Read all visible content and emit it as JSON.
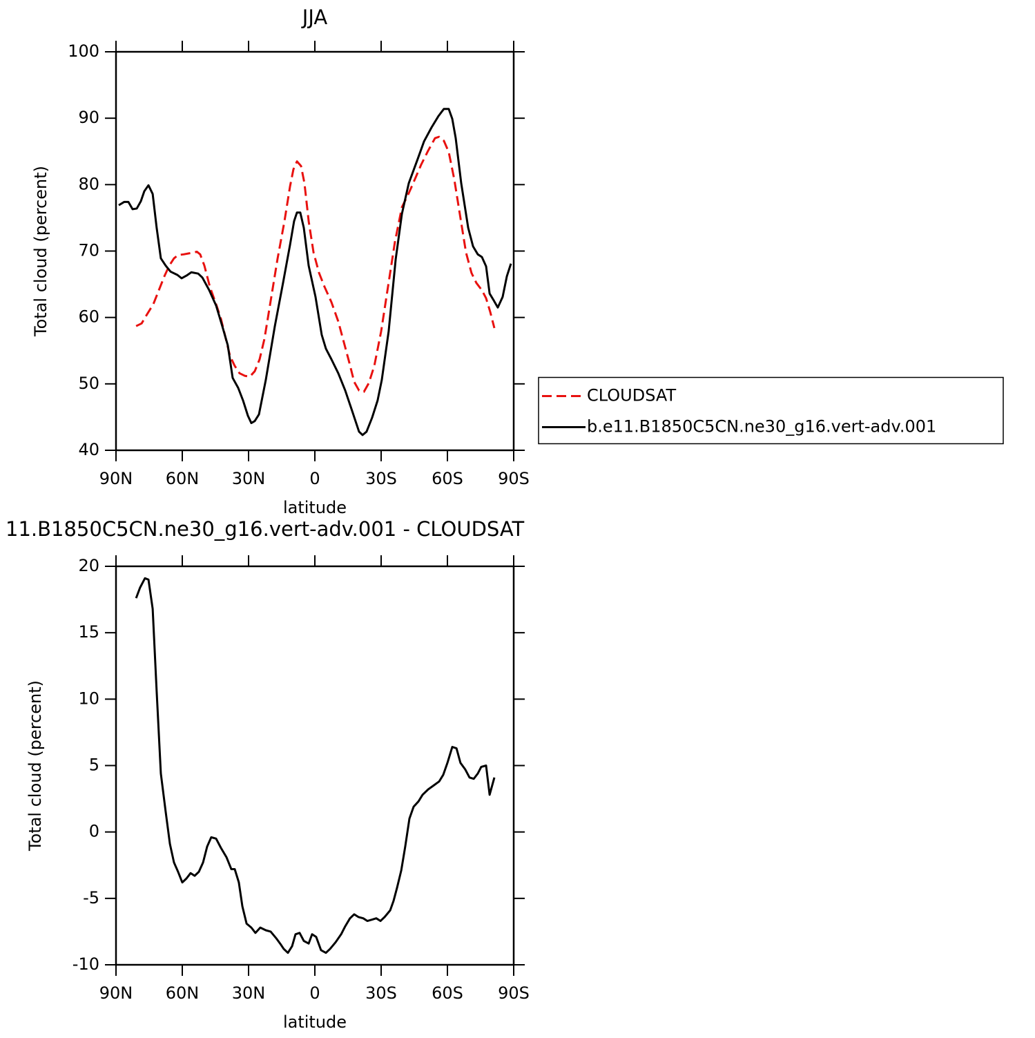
{
  "chart_data": [
    {
      "type": "line",
      "title": "JJA",
      "xlabel": "latitude",
      "ylabel": "Total cloud (percent)",
      "xlim": [
        90,
        -90
      ],
      "xticks": [
        {
          "value": 90,
          "label": "90N"
        },
        {
          "value": 60,
          "label": "60N"
        },
        {
          "value": 30,
          "label": "30N"
        },
        0,
        {
          "value": -30,
          "label": "30S"
        },
        {
          "value": -60,
          "label": "60S"
        },
        {
          "value": -90,
          "label": "90S"
        }
      ],
      "ylim": [
        40,
        100
      ],
      "yticks": [
        40,
        50,
        60,
        70,
        80,
        90,
        100
      ],
      "legend": "right",
      "series": [
        {
          "name": "CLOUDSAT",
          "color": "#e8110f",
          "dash": true,
          "x": [
            80.9,
            78.4,
            75.9,
            73.1,
            70.6,
            68.1,
            65.9,
            63.75,
            61.9,
            59.4,
            56.25,
            53.4,
            51.9,
            50,
            47.5,
            44.7,
            42.5,
            40.3,
            38.4,
            36.25,
            34.1,
            31.6,
            29.4,
            27.2,
            25,
            22.8,
            19.7,
            16.9,
            13.75,
            11.25,
            9.7,
            8.1,
            6.25,
            4.7,
            2.8,
            0.6,
            -1.9,
            -4.4,
            -7.5,
            -10.6,
            -13.1,
            -15.6,
            -17.8,
            -20,
            -22.2,
            -24.4,
            -26.9,
            -30,
            -33.1,
            -36.25,
            -39.4,
            -42.5,
            -45,
            -48.1,
            -51.25,
            -54.4,
            -56.25,
            -58.4,
            -60.6,
            -63.1,
            -65.6,
            -68.4,
            -70.9,
            -73.1,
            -75.6,
            -77.5,
            -79.4,
            -81.25
          ],
          "values": [
            58.7,
            59.1,
            60.5,
            62.0,
            64.1,
            66.2,
            67.8,
            68.9,
            69.4,
            69.5,
            69.7,
            69.9,
            69.5,
            67.8,
            64.6,
            62.0,
            59.8,
            56.8,
            54.2,
            52.7,
            51.6,
            51.2,
            51.1,
            51.9,
            53.7,
            56.8,
            63.1,
            68.8,
            74.5,
            79.7,
            82.3,
            83.5,
            82.8,
            80.2,
            74.5,
            69.8,
            66.7,
            64.6,
            62.3,
            59.4,
            56.3,
            53.2,
            50.3,
            49.0,
            48.8,
            50.1,
            52.7,
            57.9,
            64.6,
            71.4,
            76.6,
            78.7,
            80.6,
            83.0,
            85.1,
            87.0,
            87.2,
            86.6,
            84.9,
            80.8,
            75.6,
            69.8,
            66.7,
            65.2,
            64.1,
            62.9,
            60.8,
            58.4
          ]
        },
        {
          "name": "b.e11.B1850C5CN.ne30_g16.vert-adv.001",
          "color": "#000000",
          "x": [
            88.75,
            86.25,
            84.4,
            82.5,
            80.6,
            78.75,
            77.2,
            75.3,
            73.4,
            71.6,
            69.7,
            67.5,
            65.3,
            62.2,
            60.3,
            58.1,
            55.9,
            52.8,
            50.9,
            47.8,
            44.7,
            41.9,
            39.4,
            37.2,
            34.7,
            32.5,
            30.3,
            28.75,
            27.2,
            25.3,
            22.2,
            18.1,
            14.4,
            11.25,
            9.4,
            8.1,
            6.6,
            5,
            2.8,
            -0.3,
            -3.1,
            -5,
            -7.5,
            -10.6,
            -13.75,
            -16.9,
            -20,
            -21.6,
            -23.4,
            -25.9,
            -28.4,
            -30.3,
            -33.4,
            -36.6,
            -39.4,
            -42.5,
            -46.6,
            -49.4,
            -52.8,
            -55.9,
            -58.4,
            -60.6,
            -62.2,
            -63.75,
            -66.25,
            -69.4,
            -71.6,
            -73.75,
            -75.6,
            -77.5,
            -79.1,
            -80.9,
            -82.8,
            -85,
            -86.9,
            -88.75
          ],
          "values": [
            76.9,
            77.4,
            77.4,
            76.3,
            76.4,
            77.5,
            79.0,
            79.9,
            78.6,
            73.5,
            68.9,
            67.8,
            66.9,
            66.4,
            65.9,
            66.3,
            66.8,
            66.6,
            66.0,
            64.1,
            61.8,
            58.7,
            55.8,
            50.9,
            49.4,
            47.5,
            45.2,
            44.1,
            44.4,
            45.4,
            50.6,
            58.7,
            65.2,
            70.9,
            74.5,
            75.8,
            75.8,
            73.5,
            67.8,
            63.1,
            57.4,
            55.3,
            53.7,
            51.6,
            49.0,
            45.9,
            42.8,
            42.3,
            42.8,
            44.9,
            47.5,
            50.6,
            57.9,
            68.8,
            75.6,
            80.2,
            83.9,
            86.5,
            88.6,
            90.3,
            91.4,
            91.4,
            89.9,
            87.0,
            80.2,
            73.5,
            70.7,
            69.5,
            69.1,
            67.7,
            63.6,
            62.6,
            61.5,
            63.1,
            66.2,
            68.1
          ]
        }
      ]
    },
    {
      "type": "line",
      "title": "11.B1850C5CN.ne30_g16.vert-adv.001 - CLOUDSAT",
      "xlabel": "latitude",
      "ylabel": "Total cloud (percent)",
      "xlim": [
        90,
        -90
      ],
      "xticks": [
        {
          "value": 90,
          "label": "90N"
        },
        {
          "value": 60,
          "label": "60N"
        },
        {
          "value": 30,
          "label": "30N"
        },
        0,
        {
          "value": -30,
          "label": "30S"
        },
        {
          "value": -60,
          "label": "60S"
        },
        {
          "value": -90,
          "label": "90S"
        }
      ],
      "ylim": [
        -10,
        20
      ],
      "yticks": [
        -10,
        -5,
        0,
        5,
        10,
        15,
        20
      ],
      "series": [
        {
          "color": "#000000",
          "x": [
            80.9,
            79.1,
            76.9,
            75.3,
            73.4,
            71.6,
            69.7,
            67.5,
            65.6,
            63.75,
            61.9,
            60,
            58.1,
            56.25,
            54.4,
            52.5,
            50.6,
            48.75,
            46.9,
            44.7,
            42.5,
            40,
            37.8,
            36.25,
            34.4,
            32.8,
            30.9,
            28.75,
            26.9,
            24.7,
            22.2,
            20,
            17.5,
            15.3,
            14.1,
            12.2,
            10.3,
            8.75,
            6.9,
            5,
            2.8,
            1.25,
            -0.6,
            -2.8,
            -5,
            -6.9,
            -9.4,
            -11.9,
            -13.75,
            -15.9,
            -17.8,
            -19.7,
            -21.9,
            -23.75,
            -25.9,
            -27.8,
            -29.7,
            -31.6,
            -34.1,
            -35.6,
            -37.2,
            -39.1,
            -40.9,
            -42.8,
            -44.7,
            -46.9,
            -48.75,
            -51.25,
            -53.75,
            -56.25,
            -58.1,
            -60,
            -62.2,
            -64.1,
            -65.9,
            -68.1,
            -70,
            -71.9,
            -73.75,
            -75.3,
            -77.5,
            -79.1,
            -81.25
          ],
          "values": [
            17.6,
            18.4,
            19.1,
            19.0,
            16.8,
            10.6,
            4.4,
            1.5,
            -0.9,
            -2.3,
            -3.0,
            -3.8,
            -3.5,
            -3.1,
            -3.3,
            -3.0,
            -2.3,
            -1.1,
            -0.4,
            -0.5,
            -1.2,
            -1.9,
            -2.8,
            -2.8,
            -3.8,
            -5.6,
            -6.9,
            -7.2,
            -7.6,
            -7.2,
            -7.4,
            -7.5,
            -8.0,
            -8.5,
            -8.8,
            -9.1,
            -8.6,
            -7.7,
            -7.6,
            -8.2,
            -8.4,
            -7.7,
            -7.9,
            -8.9,
            -9.1,
            -8.8,
            -8.3,
            -7.7,
            -7.1,
            -6.5,
            -6.2,
            -6.4,
            -6.5,
            -6.7,
            -6.6,
            -6.5,
            -6.7,
            -6.4,
            -5.9,
            -5.2,
            -4.2,
            -2.9,
            -1.1,
            1.0,
            1.9,
            2.3,
            2.8,
            3.2,
            3.5,
            3.8,
            4.3,
            5.2,
            6.4,
            6.3,
            5.2,
            4.7,
            4.1,
            4.0,
            4.4,
            4.9,
            5.0,
            2.8,
            4.1
          ]
        }
      ]
    }
  ]
}
